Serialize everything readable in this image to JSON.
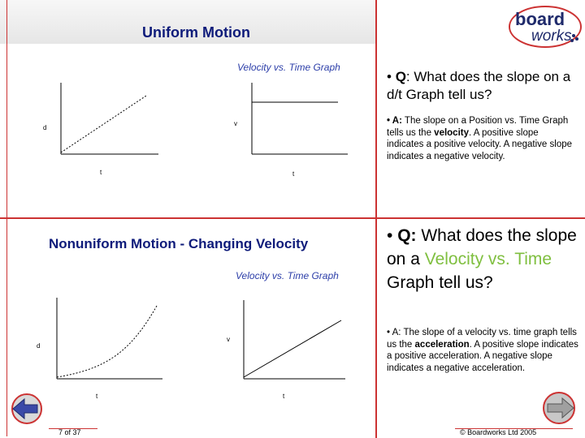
{
  "slide": {
    "title": "Uniform Motion",
    "top_caption": "Velocity vs. Time Graph",
    "section2_title": "Nonuniform Motion - Changing Velocity",
    "bottom_caption": "Velocity vs. Time Graph",
    "graphs": {
      "g1": {
        "ylabel": "d",
        "xlabel": "t"
      },
      "g2": {
        "ylabel": "v",
        "xlabel": "t"
      },
      "g3": {
        "ylabel": "d",
        "xlabel": "t"
      },
      "g4": {
        "ylabel": "v",
        "xlabel": "t"
      }
    },
    "q1": {
      "bullet": "• ",
      "q": "Q",
      "text": ": What does the slope on a d/t Graph tell us?"
    },
    "a1": {
      "prefix": "• A:",
      "text_a": " The slope on a Position vs. Time Graph tells us the ",
      "bold": "velocity",
      "text_b": ". A positive slope indicates a positive velocity. A negative slope indicates a negative velocity."
    },
    "q2": {
      "bullet": "• ",
      "q": "Q:",
      "text_a": " What does the slope on a ",
      "highlight": "Velocity vs. Time",
      "text_b": " Graph tell us?"
    },
    "a2": {
      "prefix": "• A:",
      "text_a": " The slope of a velocity vs. time graph tells us the ",
      "bold": "acceleration",
      "text_b": ". A positive slope indicates a positive acceleration. A negative slope indicates a negative acceleration."
    }
  },
  "logo": {
    "line1": "board",
    "line2": "works"
  },
  "footer": {
    "page": "7 of 37",
    "copyright": "© Boardworks Ltd 2005"
  },
  "icons": {
    "prev": "back-arrow-icon",
    "next": "forward-arrow-icon"
  },
  "colors": {
    "accent_line": "#cc3333",
    "title": "#0e1b7a",
    "highlight": "#7fbf3f",
    "logo": "#1f2a6b"
  }
}
